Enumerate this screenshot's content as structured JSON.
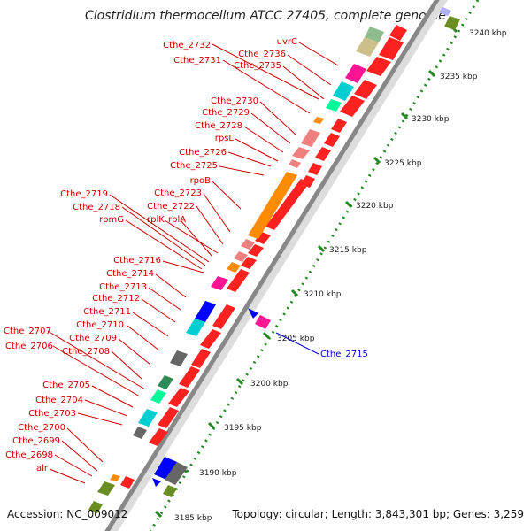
{
  "title": "Clostridium thermocellum ATCC 27405, complete genome",
  "footer": {
    "accession": "Accession: NC_009012",
    "summary": "Topology: circular; Length: 3,843,301 bp; Genes: 3,259"
  },
  "scale_labels": [
    "3240 kbp",
    "3235 kbp",
    "3230 kbp",
    "3225 kbp",
    "3220 kbp",
    "3215 kbp",
    "3210 kbp",
    "3205 kbp",
    "3200 kbp",
    "3195 kbp",
    "3190 kbp",
    "3185 kbp"
  ],
  "gene_labels_left": [
    "Cthe_2732",
    "Cthe_2731",
    "uvrC",
    "Cthe_2736",
    "Cthe_2735",
    "Cthe_2730",
    "Cthe_2729",
    "Cthe_2728",
    "rpsL",
    "Cthe_2726",
    "Cthe_2725",
    "rpoB",
    "Cthe_2723",
    "Cthe_2722",
    "rplK",
    "rplA",
    "Cthe_2719",
    "Cthe_2718",
    "rpmG",
    "Cthe_2716",
    "Cthe_2714",
    "Cthe_2713",
    "Cthe_2712",
    "Cthe_2711",
    "Cthe_2710",
    "Cthe_2709",
    "Cthe_2707",
    "Cthe_2706",
    "Cthe_2708",
    "Cthe_2705",
    "Cthe_2704",
    "Cthe_2703",
    "Cthe_2700",
    "Cthe_2699",
    "Cthe_2698",
    "alr"
  ],
  "gene_labels_right": [
    "Cthe_2715"
  ],
  "colors": {
    "red": "#ff0000",
    "forward_red": "#ff2020",
    "label_red": "#cc0000",
    "label_blue": "#0000cc",
    "backbone": "#888888",
    "tick_green": "#228822",
    "orange": "#ff8c00",
    "salmon": "#f08080",
    "magenta": "#ff1493",
    "cyan": "#00ced1",
    "olive": "#6b8e23",
    "khaki": "#cdbf8a",
    "blue": "#0000ff",
    "gray": "#666666"
  }
}
